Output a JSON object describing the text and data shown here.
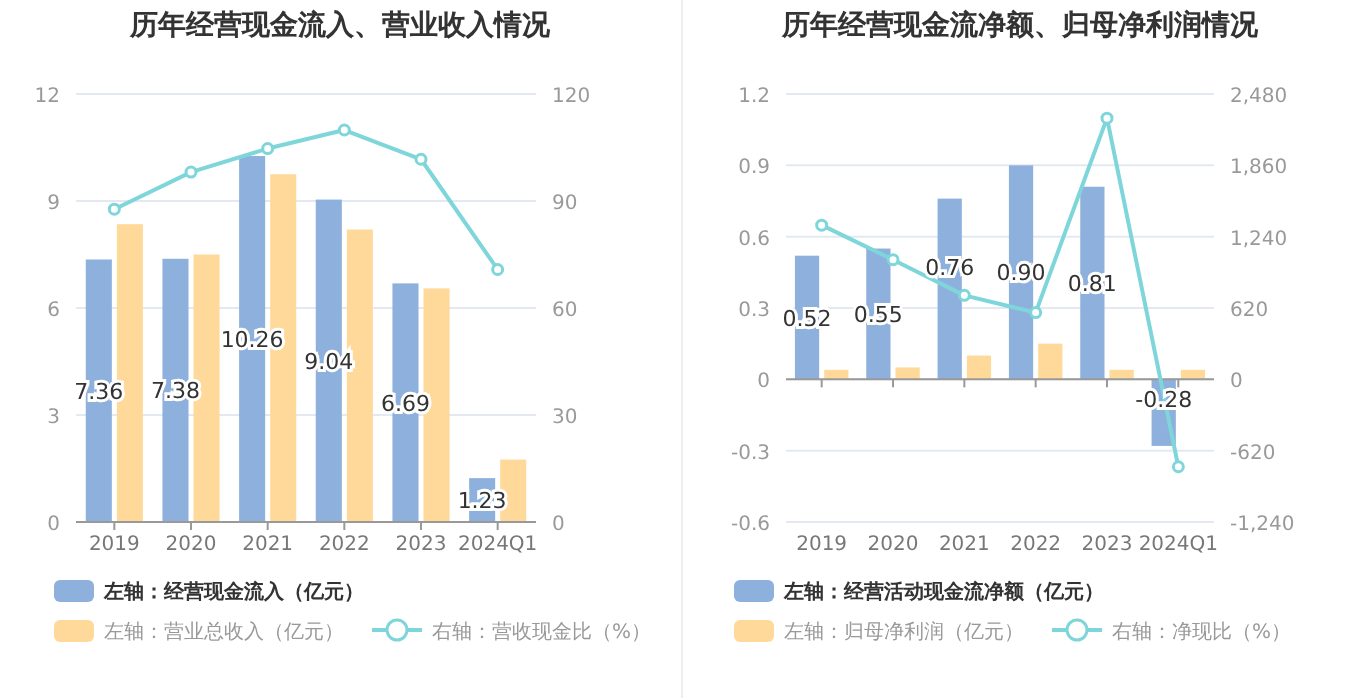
{
  "chart_data": [
    {
      "type": "bar",
      "title": "历年经营现金流入、营业收入情况",
      "categories": [
        "2019",
        "2020",
        "2021",
        "2022",
        "2023",
        "2024Q1"
      ],
      "series": [
        {
          "name": "左轴：经营现金流入（亿元）",
          "color": "#8eb0dc",
          "values": [
            7.36,
            7.38,
            10.26,
            9.04,
            6.69,
            1.23
          ],
          "value_labels": [
            "7.36",
            "7.38",
            "10.26",
            "9.04",
            "6.69",
            "1.23"
          ]
        },
        {
          "name": "左轴：营业总收入（亿元）",
          "color": "#ffd99a",
          "values": [
            8.35,
            7.5,
            9.75,
            8.2,
            6.55,
            1.75
          ]
        },
        {
          "name": "右轴：营收现金比（%）",
          "type": "line",
          "axis": "y2",
          "marker": "circle",
          "color": "#7fd6da",
          "values": [
            87.7,
            98.1,
            104.7,
            109.9,
            101.7,
            70.8
          ]
        }
      ],
      "ylim": [
        0,
        12
      ],
      "yticks": [
        0,
        3,
        6,
        9,
        12
      ],
      "y2lim": [
        0,
        120
      ],
      "y2ticks": [
        0,
        30,
        60,
        90,
        120
      ],
      "grid": "y",
      "legend": "bottom"
    },
    {
      "type": "bar",
      "title": "历年经营现金流净额、归母净利润情况",
      "categories": [
        "2019",
        "2020",
        "2021",
        "2022",
        "2023",
        "2024Q1"
      ],
      "series": [
        {
          "name": "左轴：经营活动现金流净额（亿元）",
          "color": "#8eb0dc",
          "values": [
            0.52,
            0.55,
            0.76,
            0.9,
            0.81,
            -0.28
          ],
          "value_labels": [
            "0.52",
            "0.55",
            "0.76",
            "0.90",
            "0.81",
            "-0.28"
          ]
        },
        {
          "name": "左轴：归母净利润（亿元）",
          "color": "#ffd99a",
          "values": [
            0.04,
            0.05,
            0.1,
            0.15,
            0.04,
            0.04
          ]
        },
        {
          "name": "右轴：净现比（%）",
          "type": "line",
          "axis": "y2",
          "marker": "circle",
          "color": "#7fd6da",
          "values": [
            1340,
            1040,
            730,
            580,
            2270,
            -760
          ]
        }
      ],
      "ylim": [
        -0.6,
        1.2
      ],
      "yticks": [
        -0.6,
        -0.3,
        0,
        0.3,
        0.6,
        0.9,
        1.2
      ],
      "y2lim": [
        -1240,
        2480
      ],
      "y2ticks": [
        {
          "value": -1240,
          "label": "-1,240"
        },
        {
          "value": -620,
          "label": "-620"
        },
        0,
        {
          "value": 620,
          "label": "620"
        },
        {
          "value": 1240,
          "label": "1,240"
        },
        {
          "value": 1860,
          "label": "1,860"
        },
        {
          "value": 2480,
          "label": "2,480"
        }
      ],
      "grid": "y",
      "legend": "bottom"
    }
  ]
}
